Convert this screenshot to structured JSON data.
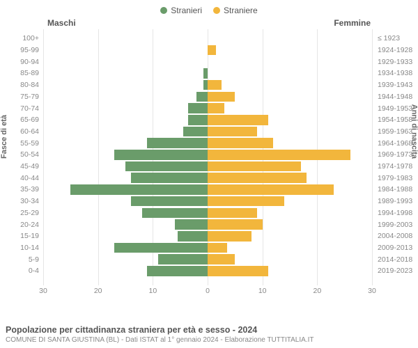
{
  "legend": {
    "male": {
      "label": "Stranieri",
      "color": "#6a9c6a"
    },
    "female": {
      "label": "Straniere",
      "color": "#f2b63c"
    }
  },
  "headers": {
    "left": "Maschi",
    "right": "Femmine"
  },
  "axes": {
    "left_title": "Fasce di età",
    "right_title": "Anni di nascita",
    "x_max": 30,
    "x_ticks": [
      30,
      20,
      10,
      0,
      10,
      20,
      30
    ],
    "grid_color": "#e5e5e5",
    "center_dash_color": "#888888"
  },
  "chart": {
    "type": "population-pyramid",
    "row_height": 16.7,
    "bar_gap": 2,
    "background_color": "#ffffff",
    "age_labels": [
      "100+",
      "95-99",
      "90-94",
      "85-89",
      "80-84",
      "75-79",
      "70-74",
      "65-69",
      "60-64",
      "55-59",
      "50-54",
      "45-49",
      "40-44",
      "35-39",
      "30-34",
      "25-29",
      "20-24",
      "15-19",
      "10-14",
      "5-9",
      "0-4"
    ],
    "year_labels": [
      "≤ 1923",
      "1924-1928",
      "1929-1933",
      "1934-1938",
      "1939-1943",
      "1944-1948",
      "1949-1953",
      "1954-1958",
      "1959-1963",
      "1964-1968",
      "1969-1973",
      "1974-1978",
      "1979-1983",
      "1984-1988",
      "1989-1993",
      "1994-1998",
      "1999-2003",
      "2004-2008",
      "2009-2013",
      "2014-2018",
      "2019-2023"
    ],
    "male_values": [
      0,
      0,
      0,
      0.8,
      0.8,
      2,
      3.5,
      3.5,
      4.5,
      11,
      17,
      15,
      14,
      25,
      14,
      12,
      6,
      5.5,
      17,
      9,
      11
    ],
    "female_values": [
      0,
      1.5,
      0,
      0,
      2.5,
      5,
      3,
      11,
      9,
      12,
      26,
      17,
      18,
      23,
      14,
      9,
      10,
      8,
      3.5,
      5,
      11
    ]
  },
  "footer": {
    "title": "Popolazione per cittadinanza straniera per età e sesso - 2024",
    "subtitle": "COMUNE DI SANTA GIUSTINA (BL) - Dati ISTAT al 1° gennaio 2024 - Elaborazione TUTTITALIA.IT"
  },
  "fonts": {
    "base_family": "Arial, Helvetica, sans-serif"
  }
}
